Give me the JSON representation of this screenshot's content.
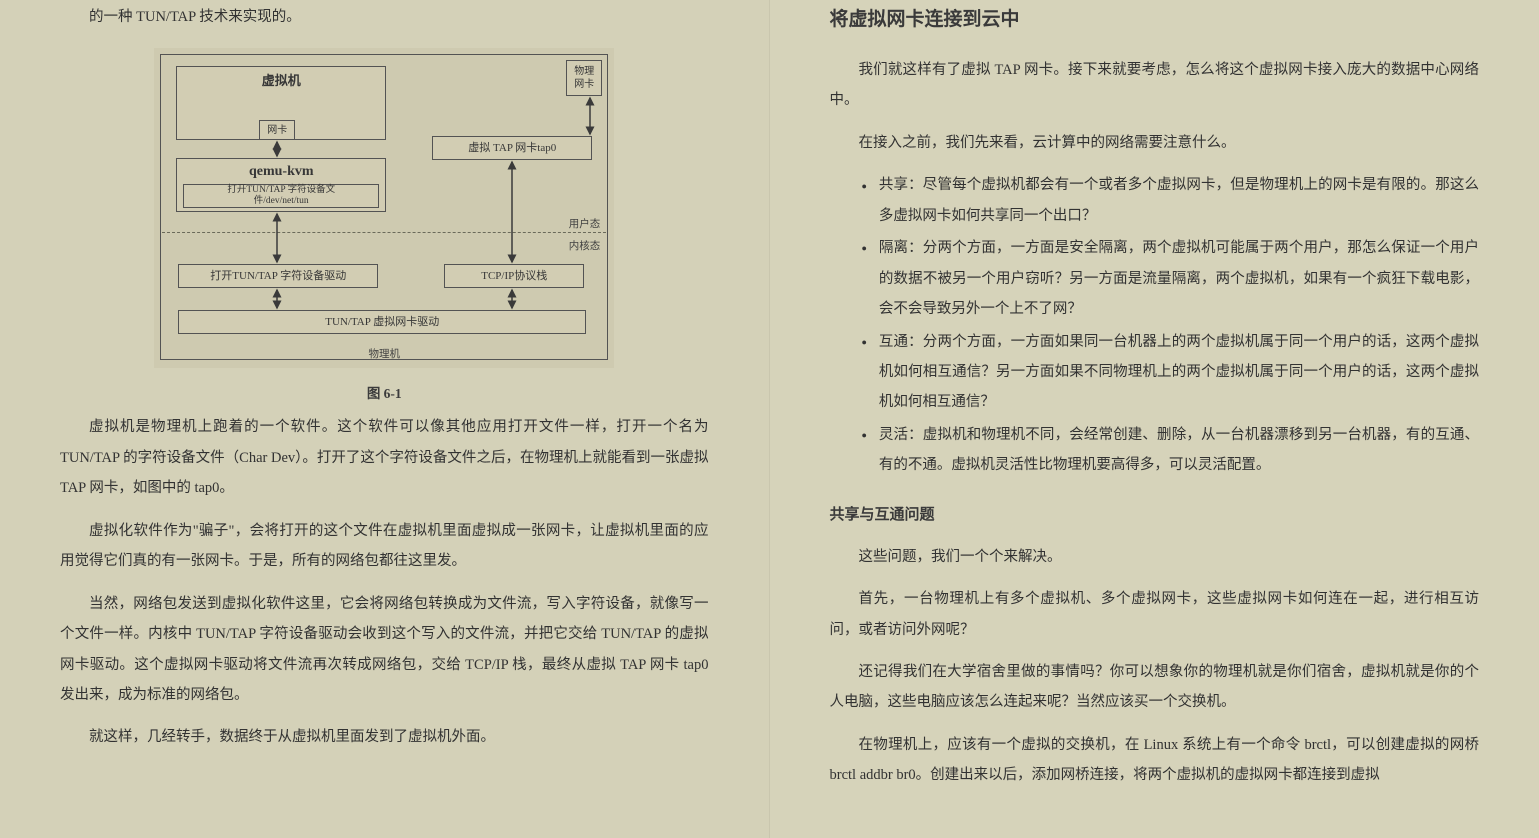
{
  "colors": {
    "page_bg": "#d4d1b8",
    "text": "#323232",
    "border": "#535353",
    "box_bg": "#d2cdb3"
  },
  "left": {
    "intro": "的一种 TUN/TAP 技术来实现的。",
    "caption": "图 6-1",
    "p1": "虚拟机是物理机上跑着的一个软件。这个软件可以像其他应用打开文件一样，打开一个名为 TUN/TAP 的字符设备文件（Char Dev）。打开了这个字符设备文件之后，在物理机上就能看到一张虚拟 TAP 网卡，如图中的 tap0。",
    "p2": "虚拟化软件作为\"骗子\"，会将打开的这个文件在虚拟机里面虚拟成一张网卡，让虚拟机里面的应用觉得它们真的有一张网卡。于是，所有的网络包都往这里发。",
    "p3": "当然，网络包发送到虚拟化软件这里，它会将网络包转换成为文件流，写入字符设备，就像写一个文件一样。内核中 TUN/TAP 字符设备驱动会收到这个写入的文件流，并把它交给 TUN/TAP 的虚拟网卡驱动。这个虚拟网卡驱动将文件流再次转成网络包，交给 TCP/IP 栈，最终从虚拟 TAP 网卡 tap0 发出来，成为标准的网络包。",
    "p4": "就这样，几经转手，数据终于从虚拟机里面发到了虚拟机外面。"
  },
  "diagram": {
    "outer_label": "物理机",
    "vm_label": "虚拟机",
    "vm_nic": "网卡",
    "qemu": "qemu-kvm",
    "qemu_sub": "打开TUN/TAP 字符设备文\n件/dev/net/tun",
    "phys_nic": "物理\n网卡",
    "tap_nic": "虚拟 TAP 网卡tap0",
    "user_mode": "用户态",
    "kernel_mode": "内核态",
    "tun_driver": "打开TUN/TAP 字符设备驱动",
    "tcpip": "TCP/IP协议栈",
    "tun_nic_driver": "TUN/TAP 虚拟网卡驱动"
  },
  "right": {
    "title": "将虚拟网卡连接到云中",
    "p1": "我们就这样有了虚拟 TAP 网卡。接下来就要考虑，怎么将这个虚拟网卡接入庞大的数据中心网络中。",
    "p2": "在接入之前，我们先来看，云计算中的网络需要注意什么。",
    "bullets": [
      "共享：尽管每个虚拟机都会有一个或者多个虚拟网卡，但是物理机上的网卡是有限的。那这么多虚拟网卡如何共享同一个出口？",
      "隔离：分两个方面，一方面是安全隔离，两个虚拟机可能属于两个用户，那怎么保证一个用户的数据不被另一个用户窃听？另一方面是流量隔离，两个虚拟机，如果有一个疯狂下载电影，会不会导致另外一个上不了网？",
      "互通：分两个方面，一方面如果同一台机器上的两个虚拟机属于同一个用户的话，这两个虚拟机如何相互通信？另一方面如果不同物理机上的两个虚拟机属于同一个用户的话，这两个虚拟机如何相互通信？",
      "灵活：虚拟机和物理机不同，会经常创建、删除，从一台机器漂移到另一台机器，有的互通、有的不通。虚拟机灵活性比物理机要高得多，可以灵活配置。"
    ],
    "sub": "共享与互通问题",
    "p3": "这些问题，我们一个个来解决。",
    "p4": "首先，一台物理机上有多个虚拟机、多个虚拟网卡，这些虚拟网卡如何连在一起，进行相互访问，或者访问外网呢？",
    "p5": "还记得我们在大学宿舍里做的事情吗？你可以想象你的物理机就是你们宿舍，虚拟机就是你的个人电脑，这些电脑应该怎么连起来呢？当然应该买一个交换机。",
    "p6": "在物理机上，应该有一个虚拟的交换机，在 Linux 系统上有一个命令 brctl，可以创建虚拟的网桥 brctl addbr br0。创建出来以后，添加网桥连接，将两个虚拟机的虚拟网卡都连接到虚拟"
  }
}
